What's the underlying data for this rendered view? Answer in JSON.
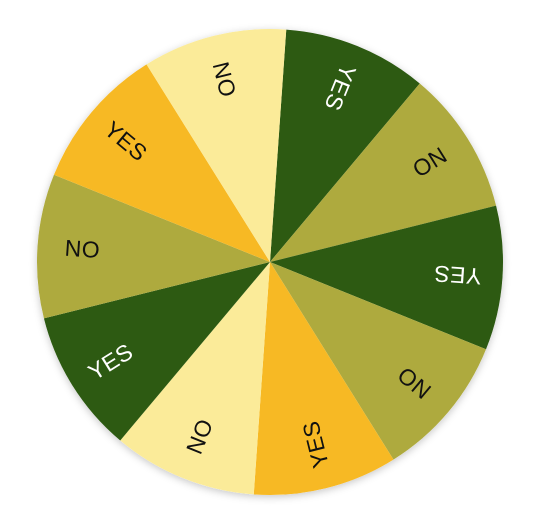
{
  "wheel": {
    "segments": [
      {
        "label": "YES",
        "color": "#2d5a12",
        "text_color": "#ffffff"
      },
      {
        "label": "NO",
        "color": "#aeaa3e",
        "text_color": "#111111"
      },
      {
        "label": "YES",
        "color": "#2d5a12",
        "text_color": "#ffffff"
      },
      {
        "label": "NO",
        "color": "#aeaa3e",
        "text_color": "#111111"
      },
      {
        "label": "YES",
        "color": "#f7b924",
        "text_color": "#111111"
      },
      {
        "label": "NO",
        "color": "#fbeb99",
        "text_color": "#111111"
      },
      {
        "label": "YES",
        "color": "#2d5a12",
        "text_color": "#ffffff"
      },
      {
        "label": "NO",
        "color": "#aeaa3e",
        "text_color": "#111111"
      },
      {
        "label": "YES",
        "color": "#f7b924",
        "text_color": "#111111"
      },
      {
        "label": "NO",
        "color": "#fbeb99",
        "text_color": "#111111"
      }
    ],
    "background": "#ffffff"
  }
}
